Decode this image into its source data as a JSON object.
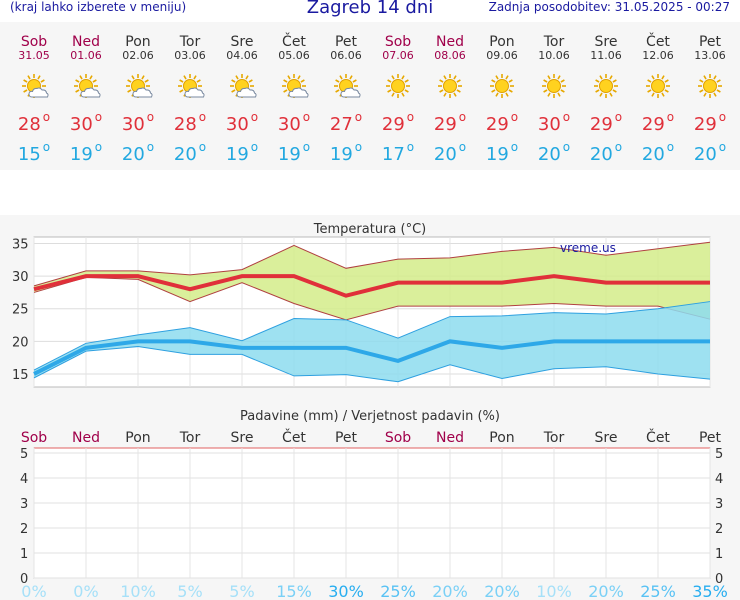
{
  "header": {
    "menu_hint": "(kraj lahko izberete v meniju)",
    "title": "Zagreb 14 dni",
    "updated": "Zadnja posodobitev: 31.05.2025 - 00:27"
  },
  "colors": {
    "weekend": "#a0004a",
    "weekday": "#333333",
    "temp_max": "#e0303a",
    "temp_min": "#22a8e0",
    "title_blue": "#1a1aa0"
  },
  "days": [
    {
      "name": "Sob",
      "date": "31.05",
      "icon": "sun-cloud-icon",
      "tmax": "28",
      "tmin": "15",
      "weekend": true
    },
    {
      "name": "Ned",
      "date": "01.06",
      "icon": "sun-cloud-icon",
      "tmax": "30",
      "tmin": "19",
      "weekend": true
    },
    {
      "name": "Pon",
      "date": "02.06",
      "icon": "sun-cloud-icon",
      "tmax": "30",
      "tmin": "20",
      "weekend": false
    },
    {
      "name": "Tor",
      "date": "03.06",
      "icon": "sun-cloud-icon",
      "tmax": "28",
      "tmin": "20",
      "weekend": false
    },
    {
      "name": "Sre",
      "date": "04.06",
      "icon": "sun-cloud-icon",
      "tmax": "30",
      "tmin": "19",
      "weekend": false
    },
    {
      "name": "Čet",
      "date": "05.06",
      "icon": "sun-cloud-icon",
      "tmax": "30",
      "tmin": "19",
      "weekend": false
    },
    {
      "name": "Pet",
      "date": "06.06",
      "icon": "sun-cloud-icon",
      "tmax": "27",
      "tmin": "19",
      "weekend": false
    },
    {
      "name": "Sob",
      "date": "07.06",
      "icon": "sun-icon",
      "tmax": "29",
      "tmin": "17",
      "weekend": true
    },
    {
      "name": "Ned",
      "date": "08.06",
      "icon": "sun-icon",
      "tmax": "29",
      "tmin": "20",
      "weekend": true
    },
    {
      "name": "Pon",
      "date": "09.06",
      "icon": "sun-icon",
      "tmax": "29",
      "tmin": "19",
      "weekend": false
    },
    {
      "name": "Tor",
      "date": "10.06",
      "icon": "sun-icon",
      "tmax": "30",
      "tmin": "20",
      "weekend": false
    },
    {
      "name": "Sre",
      "date": "11.06",
      "icon": "sun-icon",
      "tmax": "29",
      "tmin": "20",
      "weekend": false
    },
    {
      "name": "Čet",
      "date": "12.06",
      "icon": "sun-icon",
      "tmax": "29",
      "tmin": "20",
      "weekend": false
    },
    {
      "name": "Pet",
      "date": "13.06",
      "icon": "sun-icon",
      "tmax": "29",
      "tmin": "20",
      "weekend": false
    }
  ],
  "chart_data": [
    {
      "type": "line",
      "title": "Temperatura (°C)",
      "watermark": "vreme.us",
      "ylim": [
        13,
        36
      ],
      "yticks": [
        15,
        20,
        25,
        30,
        35
      ],
      "x": [
        "Sob",
        "Ned",
        "Pon",
        "Tor",
        "Sre",
        "Čet",
        "Pet",
        "Sob",
        "Ned",
        "Pon",
        "Tor",
        "Sre",
        "Čet",
        "Pet"
      ],
      "series": [
        {
          "name": "max",
          "values": [
            28,
            30,
            30,
            28,
            30,
            30,
            27,
            29,
            29,
            29,
            30,
            29,
            29,
            29
          ]
        },
        {
          "name": "max_high",
          "values": [
            28.5,
            30.8,
            30.8,
            30.2,
            31,
            34.7,
            31.2,
            32.6,
            32.8,
            33.8,
            34.4,
            33.2,
            34.2,
            35.2
          ]
        },
        {
          "name": "max_low",
          "values": [
            27.5,
            29.8,
            29.5,
            26.1,
            29,
            25.8,
            23.3,
            25.4,
            25.4,
            25.4,
            25.8,
            25.4,
            25.4,
            23.4
          ]
        },
        {
          "name": "min",
          "values": [
            15,
            19,
            20,
            20,
            19,
            19,
            19,
            17,
            20,
            19,
            20,
            20,
            20,
            20
          ]
        },
        {
          "name": "min_high",
          "values": [
            15.6,
            19.7,
            21,
            22.1,
            20.1,
            23.5,
            23.3,
            20.5,
            23.8,
            23.9,
            24.4,
            24.2,
            25,
            26.1
          ]
        },
        {
          "name": "min_low",
          "values": [
            14.4,
            18.5,
            19.2,
            18,
            18,
            14.7,
            14.9,
            13.8,
            16.4,
            14.3,
            15.8,
            16.1,
            15,
            14.2
          ]
        }
      ],
      "grid": true
    },
    {
      "type": "bar",
      "title": "Padavine (mm) / Verjetnost padavin (%)",
      "ylim": [
        0,
        5.2
      ],
      "yticks": [
        0,
        1,
        2,
        3,
        4,
        5
      ],
      "categories": [
        "Sob",
        "Ned",
        "Pon",
        "Tor",
        "Sre",
        "Čet",
        "Pet",
        "Sob",
        "Ned",
        "Pon",
        "Tor",
        "Sre",
        "Čet",
        "Pet"
      ],
      "precip_mm": [
        0,
        0,
        0,
        0,
        0,
        0,
        0,
        0,
        0,
        0,
        0,
        0,
        0,
        0
      ],
      "probability": [
        "0%",
        "0%",
        "10%",
        "5%",
        "5%",
        "15%",
        "30%",
        "25%",
        "20%",
        "20%",
        "10%",
        "20%",
        "25%",
        "35%"
      ],
      "grid": true
    }
  ]
}
